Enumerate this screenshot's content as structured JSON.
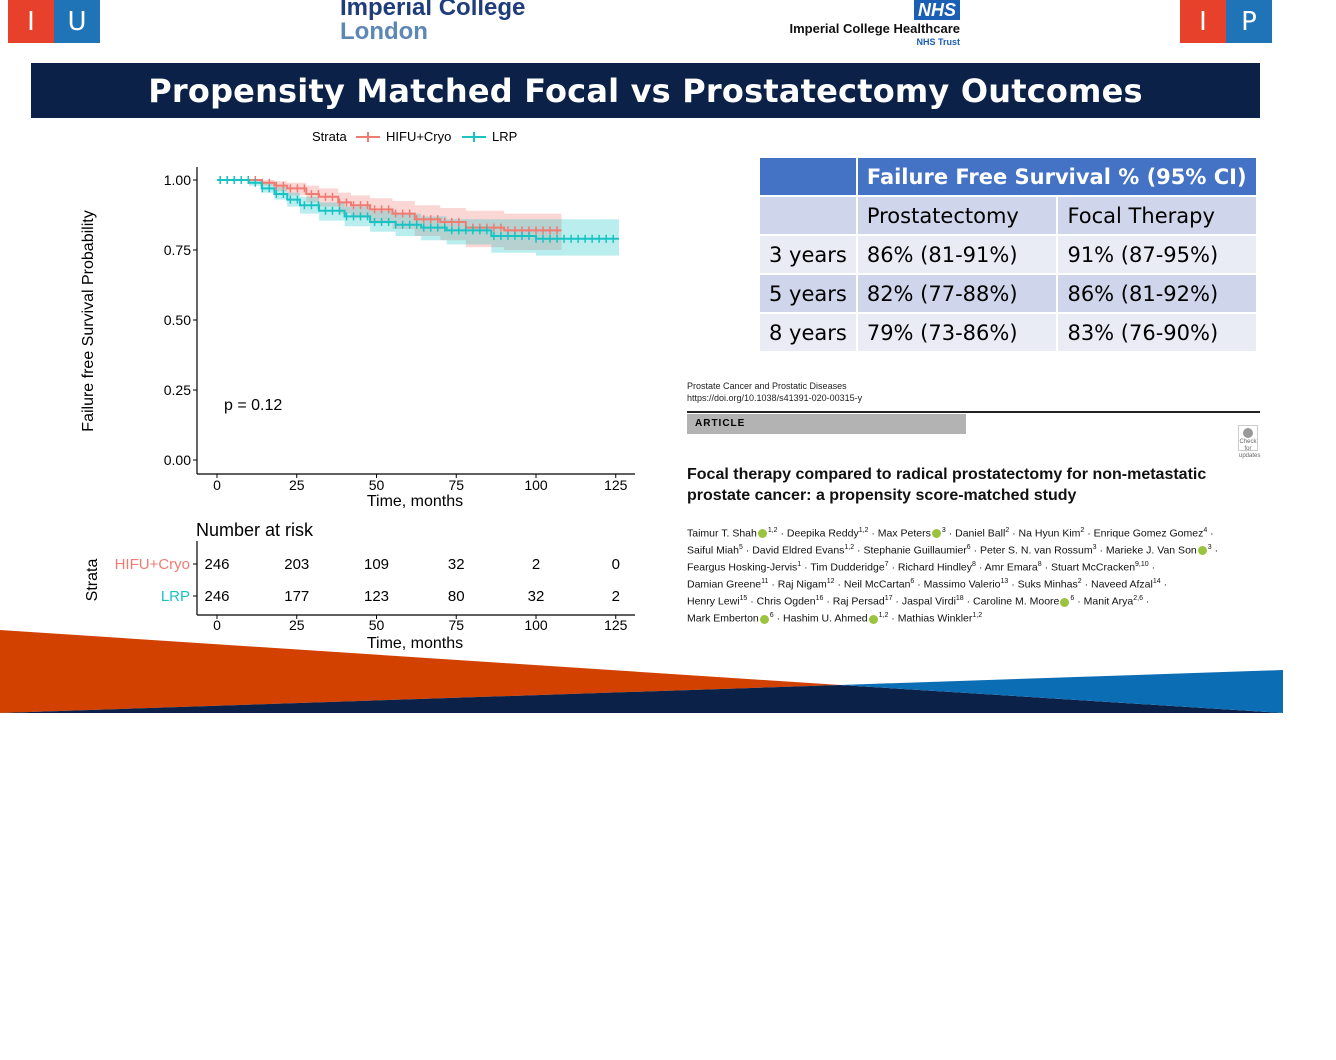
{
  "header": {
    "left_logo": {
      "letters": [
        "I",
        "U"
      ],
      "colors": [
        "#e8412b",
        "#1f74b8"
      ]
    },
    "right_logo": {
      "letters": [
        "I",
        "P"
      ],
      "colors": [
        "#e8412b",
        "#1f74b8"
      ]
    },
    "imperial": {
      "line1": "Imperial College",
      "line2": "London"
    },
    "nhs": {
      "badge": "NHS",
      "name": "Imperial College Healthcare",
      "trust": "NHS Trust"
    }
  },
  "title": "Propensity Matched Focal vs Prostatectomy Outcomes",
  "chart_data": {
    "type": "line",
    "subtype": "kaplan-meier",
    "legend_title": "Strata",
    "legend_position": "top",
    "ylabel": "Failure free Survival Probability",
    "xlabel": "Time, months",
    "xlim": [
      0,
      130
    ],
    "ylim": [
      0,
      1
    ],
    "x_ticks": [
      "0",
      "25",
      "50",
      "75",
      "100",
      "125"
    ],
    "y_ticks": [
      "0.00",
      "0.25",
      "0.50",
      "0.75",
      "1.00"
    ],
    "annotation": "p = 0.12",
    "series": [
      {
        "name": "HIFU+Cryo",
        "color": "#f07b73",
        "x": [
          0,
          8,
          14,
          18,
          22,
          28,
          32,
          38,
          42,
          48,
          55,
          62,
          70,
          78,
          90,
          108
        ],
        "y": [
          1.0,
          1.0,
          0.99,
          0.98,
          0.97,
          0.95,
          0.94,
          0.92,
          0.91,
          0.895,
          0.88,
          0.86,
          0.85,
          0.83,
          0.82,
          0.82
        ],
        "ci_lower": [
          1.0,
          1.0,
          0.98,
          0.96,
          0.945,
          0.92,
          0.905,
          0.88,
          0.865,
          0.845,
          0.825,
          0.8,
          0.785,
          0.76,
          0.75,
          0.75
        ],
        "ci_upper": [
          1.0,
          1.0,
          1.0,
          0.995,
          0.99,
          0.98,
          0.97,
          0.955,
          0.945,
          0.935,
          0.925,
          0.91,
          0.9,
          0.89,
          0.88,
          0.88
        ]
      },
      {
        "name": "LRP",
        "color": "#19c3c3",
        "x": [
          0,
          10,
          14,
          18,
          22,
          26,
          32,
          40,
          48,
          56,
          64,
          72,
          86,
          100,
          126
        ],
        "y": [
          1.0,
          0.99,
          0.97,
          0.95,
          0.93,
          0.91,
          0.89,
          0.87,
          0.85,
          0.84,
          0.83,
          0.82,
          0.8,
          0.79,
          0.79
        ],
        "ci_lower": [
          1.0,
          0.98,
          0.955,
          0.93,
          0.905,
          0.88,
          0.855,
          0.835,
          0.815,
          0.8,
          0.785,
          0.77,
          0.74,
          0.73,
          0.73
        ],
        "ci_upper": [
          1.0,
          1.0,
          0.99,
          0.975,
          0.955,
          0.94,
          0.92,
          0.905,
          0.89,
          0.88,
          0.87,
          0.86,
          0.86,
          0.86,
          0.86
        ]
      }
    ],
    "risk_table": {
      "title": "Number at risk",
      "strata_label": "Strata",
      "xlabel": "Time, months",
      "rows": [
        {
          "name": "HIFU+Cryo",
          "values": [
            "246",
            "203",
            "109",
            "32",
            "2",
            "0"
          ]
        },
        {
          "name": "LRP",
          "values": [
            "246",
            "177",
            "123",
            "80",
            "32",
            "2"
          ]
        }
      ]
    }
  },
  "survival_table": {
    "header": "Failure Free Survival % (95% CI)",
    "columns": [
      "Prostatectomy",
      "Focal Therapy"
    ],
    "rows": [
      {
        "label": "3 years",
        "prostatectomy": "86% (81-91%)",
        "focal": "91% (87-95%)"
      },
      {
        "label": "5 years",
        "prostatectomy": "82% (77-88%)",
        "focal": "86% (81-92%)"
      },
      {
        "label": "8 years",
        "prostatectomy": "79% (73-86%)",
        "focal": "83% (76-90%)"
      }
    ]
  },
  "paper": {
    "journal": "Prostate Cancer and Prostatic Diseases",
    "doi": "https://doi.org/10.1038/s41391-020-00315-y",
    "article_label": "ARTICLE",
    "check_badge": "Check for updates",
    "title_line1": "Focal therapy compared to radical prostatectomy for non-metastatic",
    "title_line2": "prostate cancer: a propensity score-matched study"
  },
  "colors": {
    "title_bar": "#0b2148",
    "table_header": "#4472c4",
    "wedge_orange": "#d24100",
    "wedge_navy": "#0b2148",
    "wedge_blue": "#0b6db3"
  }
}
